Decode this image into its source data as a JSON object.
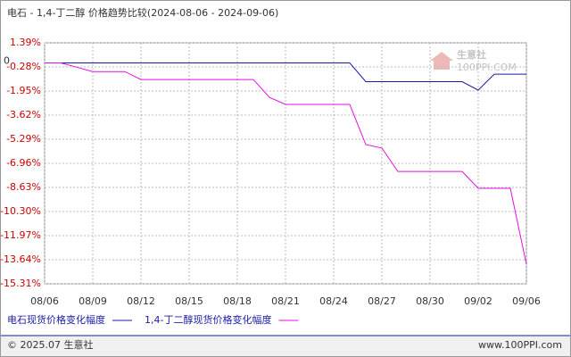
{
  "chart_data": {
    "type": "line",
    "title": "电石 - 1,4-丁二醇 价格趋势比较(2024-08-06 - 2024-09-06)",
    "categories": [
      "08/06",
      null,
      null,
      "08/09",
      null,
      null,
      "08/12",
      null,
      null,
      "08/15",
      null,
      null,
      "08/18",
      null,
      null,
      "08/21",
      null,
      null,
      "08/24",
      null,
      null,
      "08/27",
      null,
      null,
      "08/30",
      null,
      null,
      "09/02",
      null,
      null,
      "09/06"
    ],
    "series": [
      {
        "name": "电石现货价格变化幅度",
        "color": "#1a1aa6",
        "values": [
          0,
          0,
          0,
          0,
          0,
          0,
          0,
          0,
          0,
          0,
          0,
          0,
          0,
          0,
          0,
          0,
          0,
          0,
          0,
          0,
          -1.3,
          -1.3,
          -1.3,
          -1.3,
          -1.3,
          -1.3,
          -1.3,
          -1.89,
          -0.78,
          -0.78,
          -0.78
        ]
      },
      {
        "name": "1,4-丁二醇现货价格变化幅度",
        "color": "#e010e0",
        "values": [
          0,
          0,
          -0.3,
          -0.6,
          -0.6,
          -0.6,
          -1.15,
          -1.15,
          -1.15,
          -1.15,
          -1.15,
          -1.15,
          -1.15,
          -1.15,
          -2.39,
          -2.88,
          -2.88,
          -2.88,
          -2.88,
          -2.88,
          -5.66,
          -5.9,
          -7.52,
          -7.52,
          -7.52,
          -7.52,
          -7.52,
          -8.69,
          -8.69,
          -8.69,
          -13.95
        ]
      }
    ],
    "ylim": [
      -15.31,
      1.39
    ],
    "yticks": [
      {
        "value": 1.39,
        "label": "1.39%"
      },
      {
        "value": -0.28,
        "label": "-0.28%"
      },
      {
        "value": -1.95,
        "label": "-1.95%"
      },
      {
        "value": -3.62,
        "label": "-3.62%"
      },
      {
        "value": -5.29,
        "label": "-5.29%"
      },
      {
        "value": -6.96,
        "label": "-6.96%"
      },
      {
        "value": -8.63,
        "label": "-8.63%"
      },
      {
        "value": -10.3,
        "label": "-10.30%"
      },
      {
        "value": -11.97,
        "label": "-11.97%"
      },
      {
        "value": -13.64,
        "label": "-13.64%"
      },
      {
        "value": -15.31,
        "label": "-15.31%"
      }
    ],
    "zero_label": {
      "value": 0,
      "label": "0"
    },
    "grid": true,
    "watermark": {
      "name": "生意社",
      "site": "100PPI.COM"
    },
    "footer": {
      "copyright": "© 2025.07 生意社",
      "site": "www.100PPI.com"
    }
  }
}
